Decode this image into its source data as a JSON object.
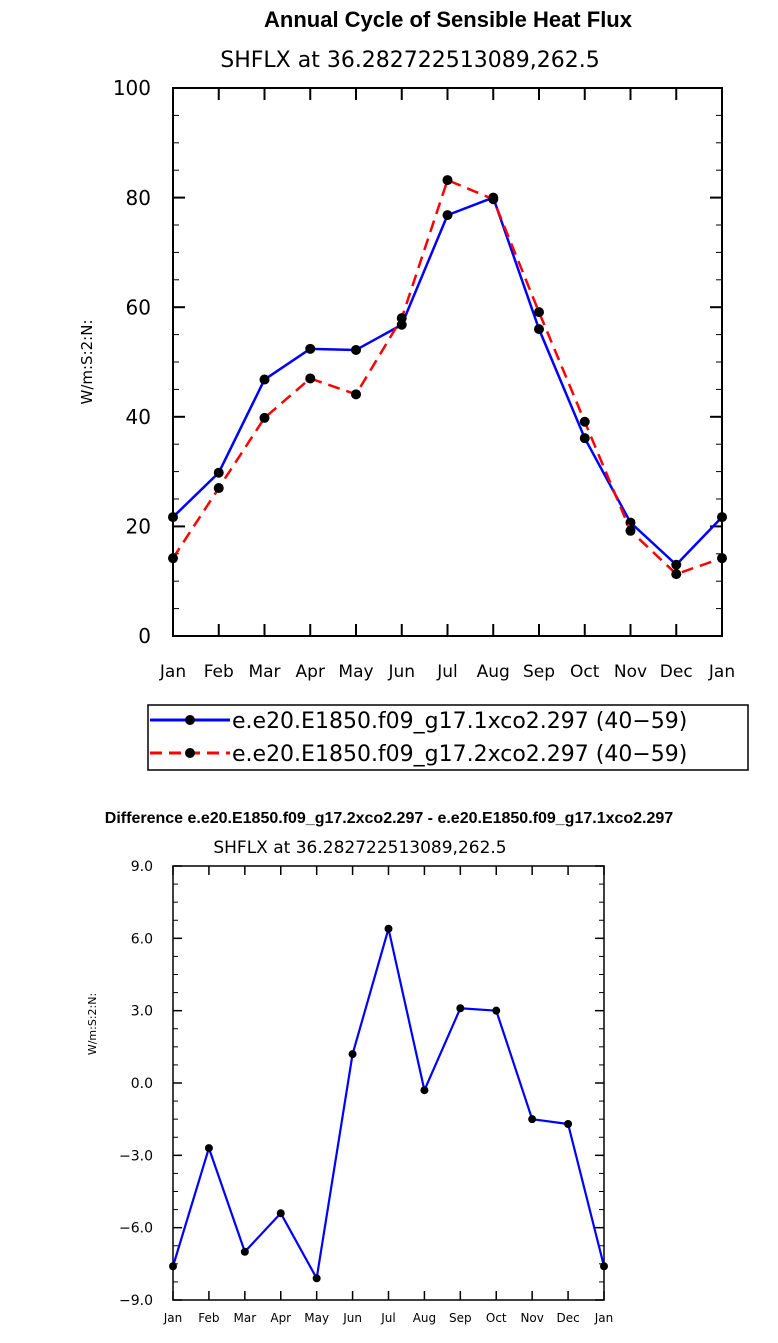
{
  "chart_data": [
    {
      "type": "line",
      "title": "Annual Cycle of Sensible Heat Flux",
      "subtitle": "SHFLX at 36.282722513089,262.5",
      "ylabel": "W/m:S:2:N:",
      "xlabel": "",
      "categories": [
        "Jan",
        "Feb",
        "Mar",
        "Apr",
        "May",
        "Jun",
        "Jul",
        "Aug",
        "Sep",
        "Oct",
        "Nov",
        "Dec",
        "Jan"
      ],
      "ylim": [
        0,
        100
      ],
      "yticks": [
        0,
        20,
        40,
        60,
        80,
        100
      ],
      "ytick_labels": [
        "0",
        "20",
        "40",
        "60",
        "80",
        "100"
      ],
      "series": [
        {
          "name": "e.e20.E1850.f09_g17.1xco2.297 (40−59)",
          "color": "#0000ff",
          "dash": "solid",
          "values": [
            21.7,
            29.8,
            46.8,
            52.4,
            52.2,
            56.8,
            76.8,
            80.0,
            56.0,
            36.1,
            20.7,
            13.0,
            21.7
          ]
        },
        {
          "name": "e.e20.E1850.f09_g17.2xco2.297 (40−59)",
          "color": "#ff0000",
          "dash": "dashed",
          "values": [
            14.2,
            27.0,
            39.8,
            47.0,
            44.1,
            58.0,
            83.2,
            79.7,
            59.1,
            39.1,
            19.2,
            11.3,
            14.2
          ]
        }
      ]
    },
    {
      "type": "line",
      "title": "Difference e.e20.E1850.f09_g17.2xco2.297 - e.e20.E1850.f09_g17.1xco2.297",
      "subtitle": "SHFLX at 36.282722513089,262.5",
      "ylabel": "W/m:S:2:N:",
      "xlabel": "",
      "categories": [
        "Jan",
        "Feb",
        "Mar",
        "Apr",
        "May",
        "Jun",
        "Jul",
        "Aug",
        "Sep",
        "Oct",
        "Nov",
        "Dec",
        "Jan"
      ],
      "ylim": [
        -9,
        9
      ],
      "yticks": [
        -9,
        -6,
        -3,
        0,
        3,
        6,
        9
      ],
      "ytick_labels": [
        "−9.0",
        "−6.0",
        "−3.0",
        "0.0",
        "3.0",
        "6.0",
        "9.0"
      ],
      "series": [
        {
          "name": "difference",
          "color": "#0000ff",
          "dash": "solid",
          "values": [
            -7.6,
            -2.7,
            -7.0,
            -5.4,
            -8.1,
            1.2,
            6.4,
            -0.3,
            3.1,
            3.0,
            -1.5,
            -1.7,
            -7.6
          ]
        }
      ]
    }
  ]
}
